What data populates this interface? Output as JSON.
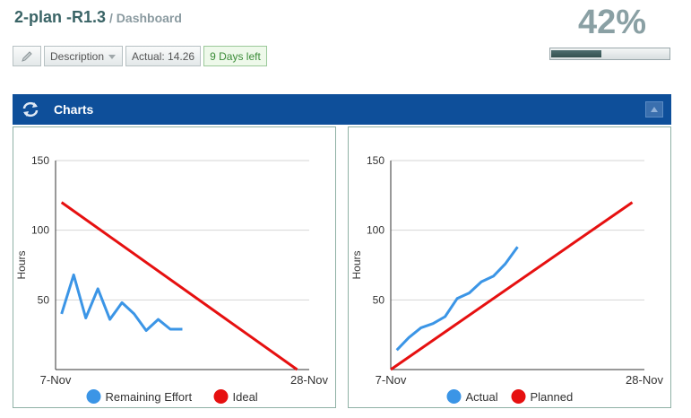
{
  "header": {
    "title": "2-plan -R1.3",
    "crumb": "/ Dashboard",
    "percent": "42%",
    "progress": 0.42
  },
  "toolbar": {
    "description": "Description",
    "actual": "Actual: 14.26",
    "days_left": "9 Days left"
  },
  "panel": {
    "title": "Charts"
  },
  "chart_data": [
    {
      "type": "line",
      "ylabel": "Hours",
      "xlabel": "",
      "x_ticks": [
        "7-Nov",
        "28-Nov"
      ],
      "y_ticks": [
        "150",
        "100",
        "50"
      ],
      "ylim": [
        0,
        150
      ],
      "xlim": [
        0,
        21
      ],
      "grid": true,
      "legend_position": "bottom",
      "series": [
        {
          "name": "Remaining Effort",
          "color": "#3b95e6",
          "x": [
            0.5,
            1.5,
            2.5,
            3.5,
            4.5,
            5.5,
            6.5,
            7.5,
            8.5,
            9.5,
            10.5
          ],
          "y": [
            40,
            68,
            37,
            58,
            36,
            48,
            40,
            28,
            36,
            29,
            29
          ]
        },
        {
          "name": "Ideal",
          "color": "#e61010",
          "x": [
            0.5,
            20
          ],
          "y": [
            120,
            0
          ]
        }
      ]
    },
    {
      "type": "line",
      "ylabel": "Hours",
      "xlabel": "",
      "x_ticks": [
        "7-Nov",
        "28-Nov"
      ],
      "y_ticks": [
        "150",
        "100",
        "50"
      ],
      "ylim": [
        0,
        150
      ],
      "xlim": [
        0,
        21
      ],
      "grid": true,
      "legend_position": "bottom",
      "series": [
        {
          "name": "Actual",
          "color": "#3b95e6",
          "x": [
            0.5,
            1.5,
            2.5,
            3.5,
            4.5,
            5.5,
            6.5,
            7.5,
            8.5,
            9.5,
            10.5
          ],
          "y": [
            14,
            23,
            30,
            33,
            38,
            51,
            55,
            63,
            67,
            76,
            88
          ]
        },
        {
          "name": "Planned",
          "color": "#e61010",
          "x": [
            0,
            20
          ],
          "y": [
            0,
            120
          ]
        }
      ]
    }
  ]
}
